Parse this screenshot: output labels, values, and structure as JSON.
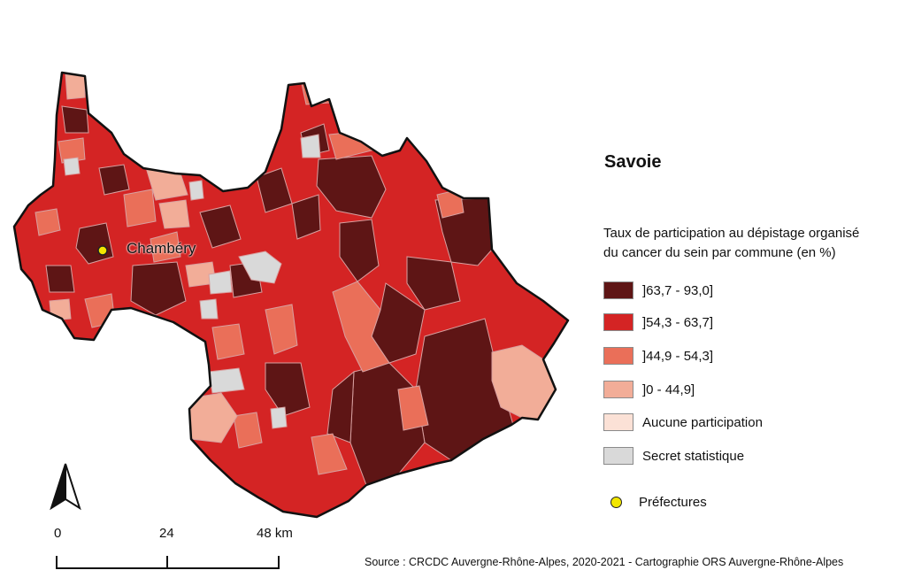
{
  "map": {
    "title": "Savoie",
    "city_label": "Chambéry",
    "legend": {
      "title_line1": "Taux de participation au dépistage organisé",
      "title_line2": "du cancer du sein par commune (en %)",
      "items": [
        {
          "label": "]63,7 - 93,0]",
          "color": "#5e1515"
        },
        {
          "label": "]54,3 - 63,7]",
          "color": "#d42424"
        },
        {
          "label": "]44,9 - 54,3]",
          "color": "#ea6f59"
        },
        {
          "label": "]0 - 44,9]",
          "color": "#f2ad98"
        },
        {
          "label": "Aucune participation",
          "color": "#fbe1d6"
        },
        {
          "label": "Secret statistique",
          "color": "#d9d9d9"
        }
      ],
      "prefectures_label": "Préfectures"
    },
    "scale": {
      "label_0": "0",
      "label_24": "24",
      "label_48": "48 km"
    },
    "source": "Source : CRCDC Auvergne-Rhône-Alpes, 2020-2021 - Cartographie ORS Auvergne-Rhône-Alpes",
    "icons": {
      "north_arrow": "north-arrow-icon",
      "prefecture_marker": "yellow-dot-icon"
    }
  }
}
